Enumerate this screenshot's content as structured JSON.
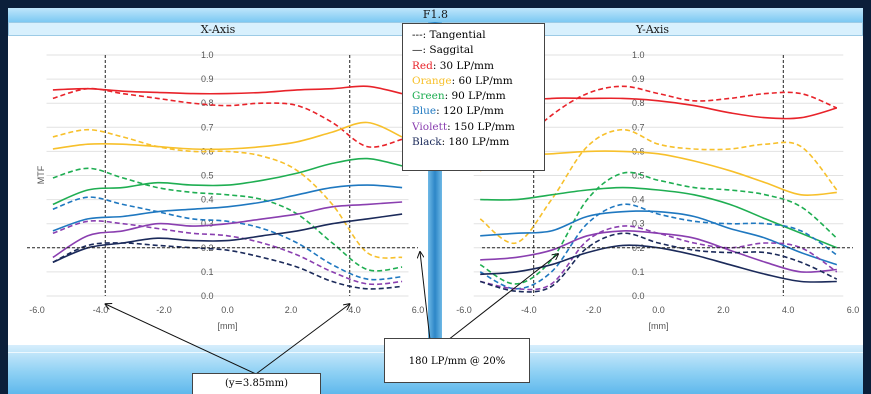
{
  "title": "F1.8",
  "colors": {
    "Red": "#e8232a",
    "Orange": "#f7c02b",
    "Green": "#1fae52",
    "Blue": "#1f78c0",
    "Violett": "#8a3fb0",
    "Black": "#1b2a5a"
  },
  "legend": {
    "tangential": "---: Tangential",
    "saggital": "—: Saggital",
    "items": [
      {
        "name": "Red",
        "text": ": 30 LP/mm"
      },
      {
        "name": "Orange",
        "text": ": 60 LP/mm"
      },
      {
        "name": "Green",
        "text": ": 90 LP/mm"
      },
      {
        "name": "Blue",
        "text": ": 120 LP/mm"
      },
      {
        "name": "Violett",
        "text": ": 150 LP/mm"
      },
      {
        "name": "Black",
        "text": ": 180 LP/mm"
      }
    ]
  },
  "annotations": {
    "threshold": "180 LP/mm @ 20%",
    "position": "(y=3.85mm)"
  },
  "chart_data": [
    {
      "type": "line",
      "title": "X-Axis",
      "xlabel": "[mm]",
      "ylabel": "MTF",
      "xlim": [
        -6,
        6
      ],
      "ylim": [
        0,
        1
      ],
      "xticks": [
        "-6.0",
        "-4.0",
        "-2.0",
        "0.0",
        "2.0",
        "4.0",
        "6.0"
      ],
      "yticks": [
        "0.0",
        "0.1",
        "0.2",
        "0.3",
        "0.4",
        "0.5",
        "0.6",
        "0.7",
        "0.8",
        "0.9",
        "1.0"
      ],
      "x": [
        -5.5,
        -4.4,
        -3.3,
        -2.2,
        -1.1,
        0,
        1.1,
        2.2,
        3.3,
        4.4,
        5.5
      ],
      "reference_line_y": 0.2,
      "vlines_x": [
        -3.85,
        3.85
      ],
      "series": [
        {
          "name": "Red",
          "style": "saggital",
          "values": [
            0.855,
            0.86,
            0.85,
            0.845,
            0.84,
            0.84,
            0.845,
            0.855,
            0.86,
            0.87,
            0.84
          ]
        },
        {
          "name": "Red",
          "style": "tangential",
          "values": [
            0.82,
            0.86,
            0.84,
            0.82,
            0.8,
            0.79,
            0.8,
            0.79,
            0.72,
            0.62,
            0.65
          ]
        },
        {
          "name": "Orange",
          "style": "saggital",
          "values": [
            0.61,
            0.63,
            0.63,
            0.62,
            0.61,
            0.61,
            0.62,
            0.64,
            0.68,
            0.72,
            0.66
          ]
        },
        {
          "name": "Orange",
          "style": "tangential",
          "values": [
            0.66,
            0.69,
            0.66,
            0.62,
            0.6,
            0.6,
            0.58,
            0.52,
            0.38,
            0.18,
            0.16
          ]
        },
        {
          "name": "Green",
          "style": "saggital",
          "values": [
            0.38,
            0.44,
            0.45,
            0.47,
            0.46,
            0.46,
            0.48,
            0.51,
            0.55,
            0.57,
            0.54
          ]
        },
        {
          "name": "Green",
          "style": "tangential",
          "values": [
            0.49,
            0.53,
            0.49,
            0.45,
            0.43,
            0.42,
            0.4,
            0.34,
            0.22,
            0.11,
            0.12
          ]
        },
        {
          "name": "Blue",
          "style": "saggital",
          "values": [
            0.27,
            0.32,
            0.33,
            0.35,
            0.36,
            0.37,
            0.39,
            0.42,
            0.45,
            0.46,
            0.45
          ]
        },
        {
          "name": "Blue",
          "style": "tangential",
          "values": [
            0.36,
            0.41,
            0.38,
            0.35,
            0.32,
            0.31,
            0.28,
            0.22,
            0.13,
            0.07,
            0.08
          ]
        },
        {
          "name": "Violett",
          "style": "saggital",
          "values": [
            0.16,
            0.25,
            0.27,
            0.3,
            0.29,
            0.3,
            0.32,
            0.34,
            0.37,
            0.38,
            0.39
          ]
        },
        {
          "name": "Violett",
          "style": "tangential",
          "values": [
            0.26,
            0.31,
            0.3,
            0.28,
            0.26,
            0.25,
            0.22,
            0.17,
            0.1,
            0.05,
            0.06
          ]
        },
        {
          "name": "Black",
          "style": "saggital",
          "values": [
            0.14,
            0.2,
            0.22,
            0.24,
            0.23,
            0.23,
            0.25,
            0.27,
            0.3,
            0.32,
            0.34
          ]
        },
        {
          "name": "Black",
          "style": "tangential",
          "values": [
            0.14,
            0.21,
            0.22,
            0.21,
            0.2,
            0.19,
            0.16,
            0.12,
            0.06,
            0.03,
            0.04
          ]
        }
      ]
    },
    {
      "type": "line",
      "title": "Y-Axis",
      "xlabel": "[mm]",
      "ylabel": "",
      "xlim": [
        -6,
        6
      ],
      "ylim": [
        0,
        1
      ],
      "xticks": [
        "-6.0",
        "-4.0",
        "-2.0",
        "0.0",
        "2.0",
        "4.0",
        "6.0"
      ],
      "yticks": [
        "0.0",
        "0.1",
        "0.2",
        "0.3",
        "0.4",
        "0.5",
        "0.6",
        "0.7",
        "0.8",
        "0.9",
        "1.0"
      ],
      "x": [
        -5.5,
        -4.4,
        -3.3,
        -2.2,
        -1.1,
        0,
        1.1,
        2.2,
        3.3,
        4.4,
        5.5
      ],
      "reference_line_y": 0.2,
      "vlines_x": [
        -3.85,
        3.85
      ],
      "series": [
        {
          "name": "Red",
          "style": "saggital",
          "values": [
            0.72,
            0.8,
            0.82,
            0.82,
            0.82,
            0.81,
            0.79,
            0.76,
            0.74,
            0.74,
            0.78
          ]
        },
        {
          "name": "Red",
          "style": "tangential",
          "values": [
            0.52,
            0.62,
            0.75,
            0.84,
            0.87,
            0.84,
            0.81,
            0.82,
            0.84,
            0.84,
            0.78
          ]
        },
        {
          "name": "Orange",
          "style": "saggital",
          "values": [
            0.52,
            0.58,
            0.59,
            0.6,
            0.6,
            0.59,
            0.56,
            0.52,
            0.47,
            0.42,
            0.43
          ]
        },
        {
          "name": "Orange",
          "style": "tangential",
          "values": [
            0.32,
            0.22,
            0.4,
            0.62,
            0.69,
            0.63,
            0.61,
            0.61,
            0.63,
            0.62,
            0.44
          ]
        },
        {
          "name": "Green",
          "style": "saggital",
          "values": [
            0.4,
            0.4,
            0.42,
            0.44,
            0.45,
            0.44,
            0.42,
            0.38,
            0.32,
            0.26,
            0.2
          ]
        },
        {
          "name": "Green",
          "style": "tangential",
          "values": [
            0.13,
            0.05,
            0.15,
            0.4,
            0.51,
            0.48,
            0.45,
            0.44,
            0.42,
            0.37,
            0.24
          ]
        },
        {
          "name": "Blue",
          "style": "saggital",
          "values": [
            0.25,
            0.26,
            0.27,
            0.33,
            0.35,
            0.35,
            0.33,
            0.28,
            0.24,
            0.18,
            0.13
          ]
        },
        {
          "name": "Blue",
          "style": "tangential",
          "values": [
            0.1,
            0.03,
            0.1,
            0.3,
            0.38,
            0.34,
            0.31,
            0.3,
            0.3,
            0.27,
            0.17
          ]
        },
        {
          "name": "Violett",
          "style": "saggital",
          "values": [
            0.15,
            0.16,
            0.19,
            0.25,
            0.27,
            0.26,
            0.24,
            0.19,
            0.14,
            0.1,
            0.11
          ]
        },
        {
          "name": "Violett",
          "style": "tangential",
          "values": [
            0.06,
            0.03,
            0.05,
            0.23,
            0.29,
            0.26,
            0.22,
            0.2,
            0.22,
            0.2,
            0.1
          ]
        },
        {
          "name": "Black",
          "style": "saggital",
          "values": [
            0.09,
            0.1,
            0.13,
            0.18,
            0.21,
            0.2,
            0.17,
            0.13,
            0.09,
            0.06,
            0.06
          ]
        },
        {
          "name": "Black",
          "style": "tangential",
          "values": [
            0.06,
            0.02,
            0.04,
            0.2,
            0.26,
            0.22,
            0.19,
            0.18,
            0.18,
            0.14,
            0.07
          ]
        }
      ]
    }
  ]
}
